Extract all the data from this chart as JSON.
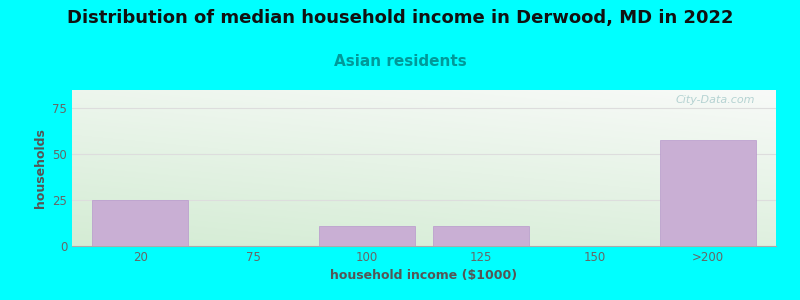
{
  "title": "Distribution of median household income in Derwood, MD in 2022",
  "subtitle": "Asian residents",
  "xlabel": "household income ($1000)",
  "ylabel": "households",
  "background_color": "#00FFFF",
  "plot_bg_color_bottom_left": "#d4ecd4",
  "plot_bg_color_top_right": "#f8faf8",
  "bar_color": "#c9afd4",
  "bar_edge_color": "#b898cc",
  "categories": [
    "20",
    "75",
    "100",
    "125",
    "150",
    ">200"
  ],
  "values": [
    25,
    0,
    11,
    11,
    0,
    58
  ],
  "ylim": [
    0,
    85
  ],
  "yticks": [
    0,
    25,
    50,
    75
  ],
  "title_fontsize": 13,
  "subtitle_fontsize": 11,
  "axis_label_fontsize": 9,
  "tick_fontsize": 8.5,
  "title_color": "#111111",
  "subtitle_color": "#009999",
  "axis_label_color": "#555555",
  "tick_color": "#666666",
  "grid_color": "#dddddd",
  "watermark_text": "City-Data.com",
  "watermark_color": "#aacccc",
  "bar_width": 0.85
}
